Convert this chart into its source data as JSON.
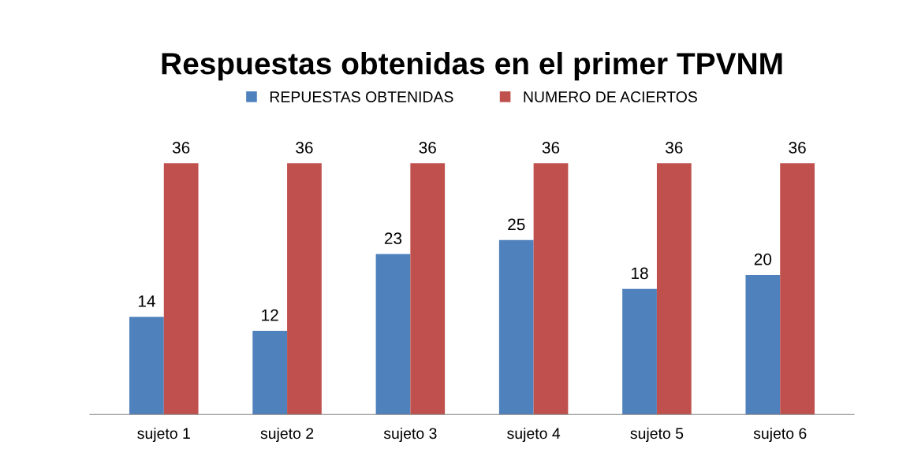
{
  "chart_data": {
    "type": "bar",
    "title": "Respuestas obtenidas en el primer TPVNM",
    "categories": [
      "sujeto 1",
      "sujeto 2",
      "sujeto 3",
      "sujeto 4",
      "sujeto 5",
      "sujeto 6"
    ],
    "series": [
      {
        "name": "REPUESTAS OBTENIDAS",
        "color": "#4f81bd",
        "values": [
          14,
          12,
          23,
          25,
          18,
          20
        ]
      },
      {
        "name": "NUMERO DE ACIERTOS",
        "color": "#c0504d",
        "values": [
          36,
          36,
          36,
          36,
          36,
          36
        ]
      }
    ],
    "data_labels": true,
    "legend": "top",
    "grid": false
  }
}
